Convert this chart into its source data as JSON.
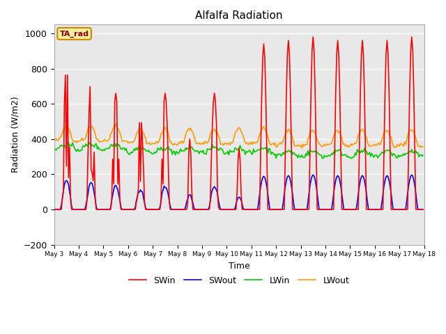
{
  "title": "Alfalfa Radiation",
  "xlabel": "Time",
  "ylabel": "Radiation (W/m2)",
  "ylim": [
    -200,
    1050
  ],
  "background_color": "#e8e8e8",
  "figure_bg": "#ffffff",
  "grid_color": "#d8d8d8",
  "legend_label": "TA_rad",
  "legend_label_bg": "#f5f0a0",
  "legend_label_border": "#cc8800",
  "series": {
    "SWin": {
      "color": "#ff0000",
      "lw": 1.2
    },
    "SWout": {
      "color": "#0000ff",
      "lw": 1.2
    },
    "LWin": {
      "color": "#00cc00",
      "lw": 1.2
    },
    "LWout": {
      "color": "#ff9900",
      "lw": 1.2
    }
  },
  "xtick_labels": [
    "May 3",
    "May 4",
    "May 5",
    "May 6",
    "May 7",
    "May 8",
    "May 9",
    "May 10",
    "May 11",
    "May 12",
    "May 13",
    "May 14",
    "May 15",
    "May 16",
    "May 17",
    "May 18"
  ],
  "xtick_positions": [
    0,
    1,
    2,
    3,
    4,
    5,
    6,
    7,
    8,
    9,
    10,
    11,
    12,
    13,
    14,
    15
  ],
  "ytick_positions": [
    -200,
    0,
    200,
    400,
    600,
    800,
    1000
  ],
  "n_days": 15
}
